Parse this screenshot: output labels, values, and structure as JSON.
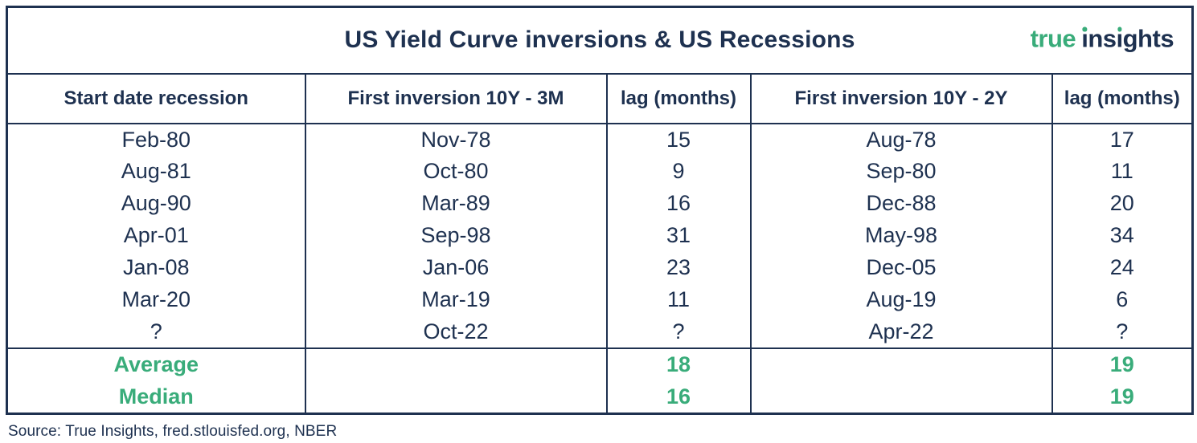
{
  "colors": {
    "navy": "#1E3150",
    "green": "#39AC7A",
    "bg": "#FFFFFF"
  },
  "logo": {
    "green_word": "true",
    "navy_word": "insights"
  },
  "source": "Source: True Insights, fred.stlouisfed.org, NBER",
  "chart_data": {
    "type": "table",
    "title": "US Yield Curve inversions & US Recessions",
    "columns": [
      "Start date recession",
      "First inversion 10Y - 3M",
      "lag (months)",
      "First inversion 10Y - 2Y",
      "lag (months)"
    ],
    "rows": [
      [
        "Feb-80",
        "Nov-78",
        "15",
        "Aug-78",
        "17"
      ],
      [
        "Aug-81",
        "Oct-80",
        "9",
        "Sep-80",
        "11"
      ],
      [
        "Aug-90",
        "Mar-89",
        "16",
        "Dec-88",
        "20"
      ],
      [
        "Apr-01",
        "Sep-98",
        "31",
        "May-98",
        "34"
      ],
      [
        "Jan-08",
        "Jan-06",
        "23",
        "Dec-05",
        "24"
      ],
      [
        "Mar-20",
        "Mar-19",
        "11",
        "Aug-19",
        "6"
      ],
      [
        "?",
        "Oct-22",
        "?",
        "Apr-22",
        "?"
      ]
    ],
    "summary": [
      {
        "label": "Average",
        "values": [
          "",
          "18",
          "",
          "19"
        ]
      },
      {
        "label": "Median",
        "values": [
          "",
          "16",
          "",
          "19"
        ]
      }
    ]
  }
}
